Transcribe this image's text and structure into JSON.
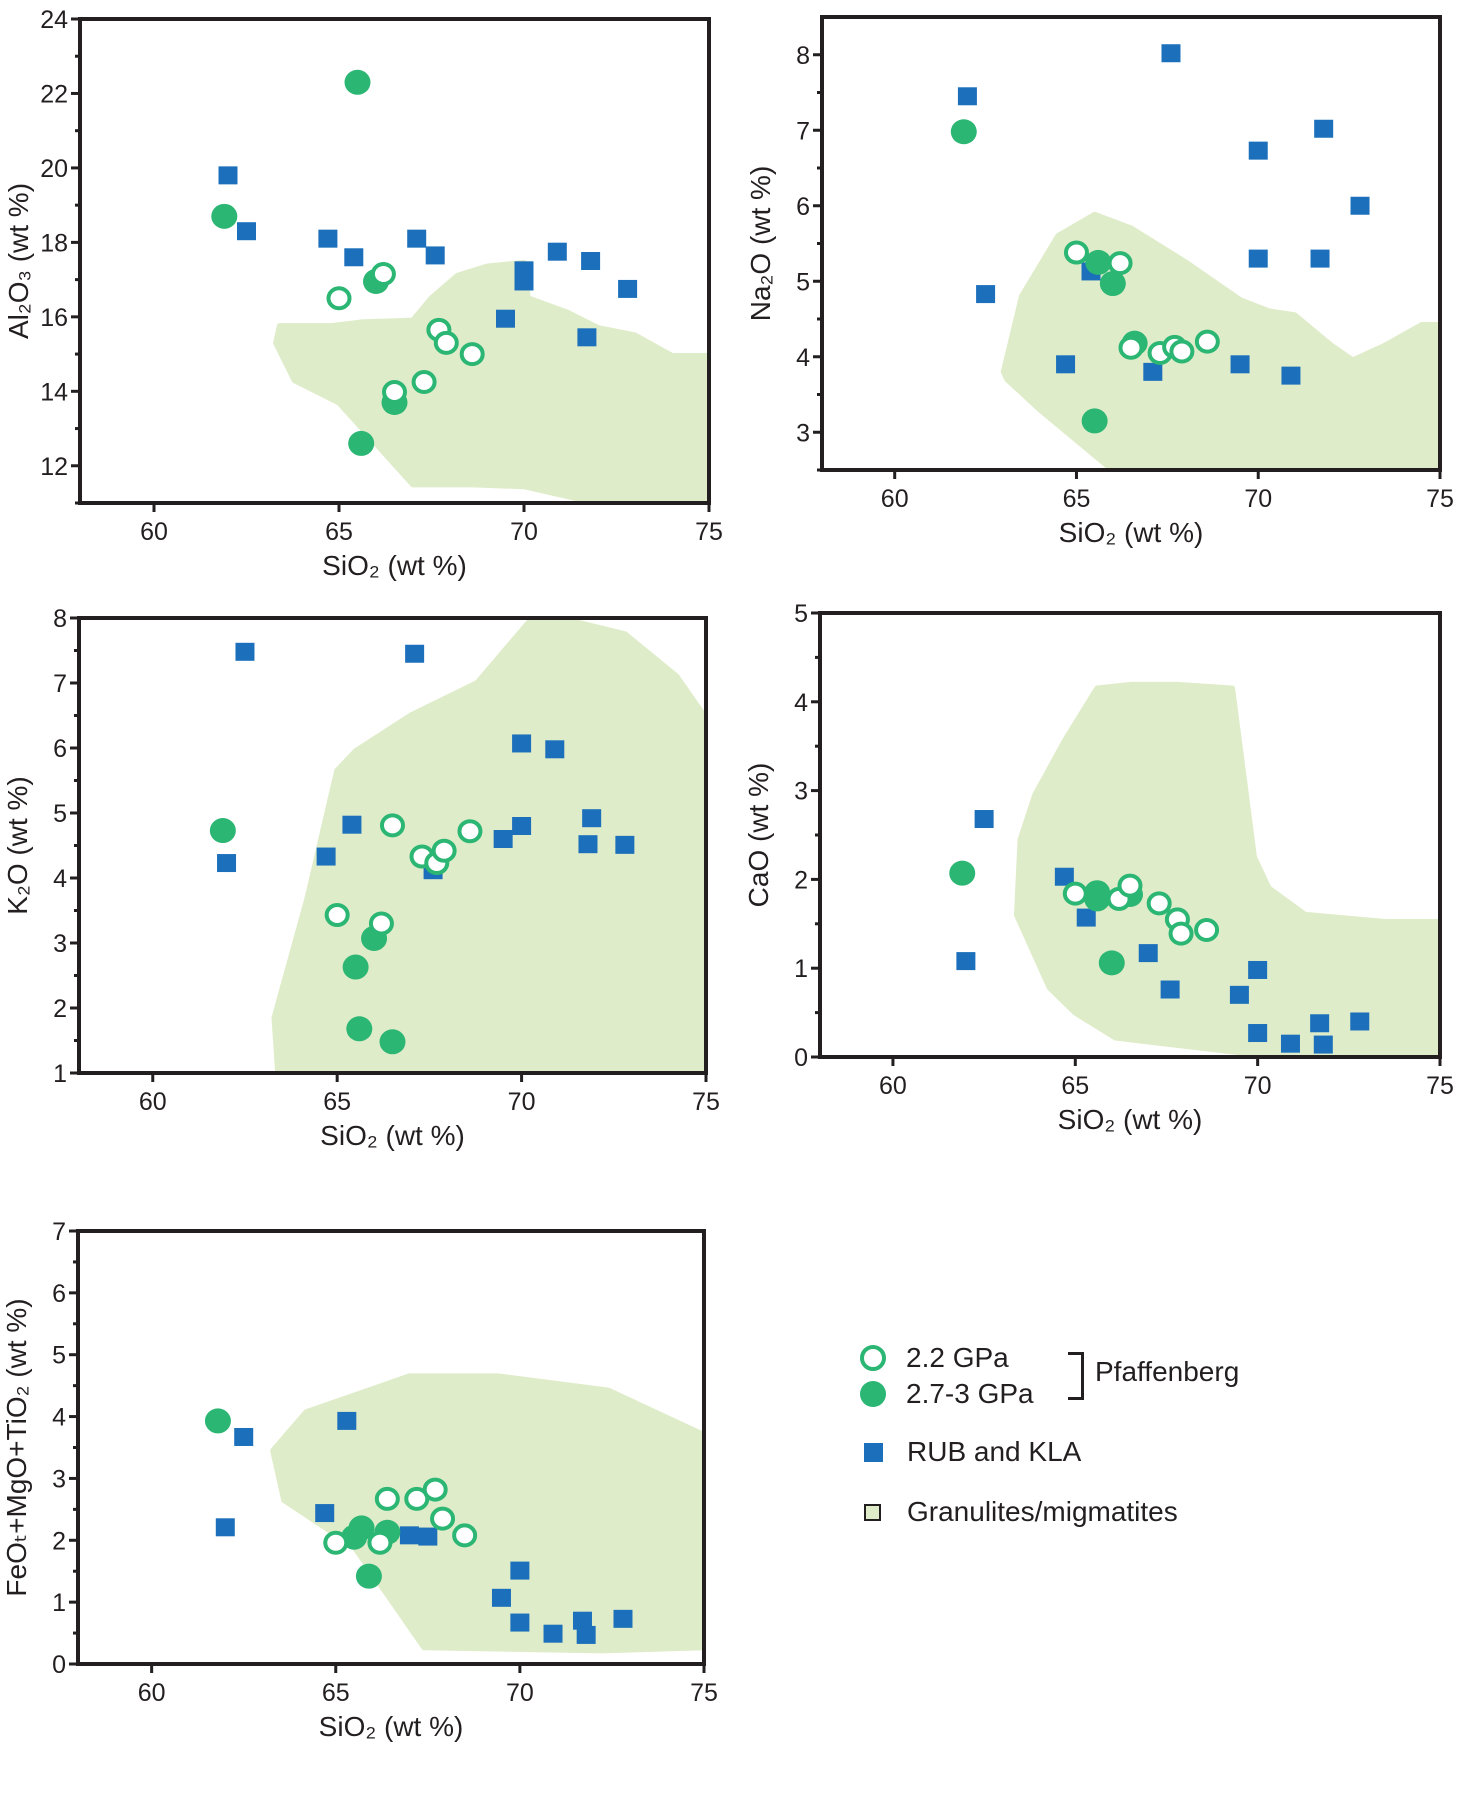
{
  "colors": {
    "pressure_2_2": "#2bb673",
    "pressure_2_7_3": "#2bb673",
    "rub_kla": "#1c70bb",
    "field": "#dfecc9",
    "axis": "#231f20"
  },
  "legend": {
    "items": [
      {
        "symbol": "open-circle",
        "label": "2.2 GPa"
      },
      {
        "symbol": "filled-circle",
        "label": "2.7-3 GPa"
      },
      {
        "symbol": "square",
        "label": "RUB and KLA"
      },
      {
        "symbol": "field",
        "label": "Granulites/migmatites"
      }
    ],
    "group_label": "Pfaffenberg"
  },
  "chart_data": [
    {
      "type": "scatter",
      "id": "al2o3",
      "xlabel": "SiO₂ (wt %)",
      "ylabel": "Al₂O₃ (wt %)",
      "xlim": [
        58,
        75
      ],
      "ylim": [
        11,
        24
      ],
      "xticks": [
        60,
        65,
        70,
        75
      ],
      "yticks": [
        12,
        14,
        16,
        18,
        20,
        22,
        24
      ],
      "series": [
        {
          "name": "2.2 GPa",
          "marker": "open-circle",
          "x": [
            65.0,
            66.2,
            66.5,
            67.3,
            67.7,
            67.9,
            68.6
          ],
          "y": [
            16.5,
            17.15,
            13.98,
            14.25,
            15.65,
            15.3,
            15.0
          ]
        },
        {
          "name": "2.7-3 GPa",
          "marker": "filled-circle",
          "x": [
            61.9,
            65.5,
            66.0,
            66.5,
            65.6
          ],
          "y": [
            18.7,
            22.3,
            16.95,
            13.7,
            12.6
          ]
        },
        {
          "name": "RUB and KLA",
          "marker": "square",
          "x": [
            62.0,
            62.5,
            64.7,
            65.4,
            67.1,
            67.6,
            69.5,
            70.0,
            70.0,
            70.9,
            71.8,
            71.7,
            72.8
          ],
          "y": [
            19.8,
            18.3,
            18.1,
            17.6,
            18.1,
            17.65,
            15.95,
            17.25,
            16.95,
            17.75,
            17.5,
            15.45,
            16.75
          ]
        },
        {
          "name": "Granulites/migmatites",
          "marker": "field",
          "x": [
            63.4,
            64.8,
            65.6,
            67.0,
            67.5,
            68.2,
            69.0,
            70.0,
            70.1,
            71.2,
            72.0,
            73.0,
            74.0,
            75.0,
            75.0,
            72.0,
            70.0,
            68.6,
            67.0,
            65.0,
            63.8,
            63.3
          ],
          "y": [
            15.75,
            15.75,
            15.85,
            15.9,
            16.5,
            17.1,
            17.35,
            17.45,
            16.5,
            16.1,
            15.7,
            15.5,
            14.95,
            14.95,
            11.0,
            11.0,
            11.45,
            11.5,
            11.5,
            13.7,
            14.3,
            15.3
          ]
        }
      ]
    },
    {
      "type": "scatter",
      "id": "na2o",
      "xlabel": "SiO₂ (wt %)",
      "ylabel": "Na₂O (wt %)",
      "xlim": [
        58,
        75
      ],
      "ylim": [
        2.5,
        8.5
      ],
      "xticks": [
        60,
        65,
        70,
        75
      ],
      "yticks": [
        3,
        4,
        5,
        6,
        7,
        8
      ],
      "series": [
        {
          "name": "2.2 GPa",
          "marker": "open-circle",
          "x": [
            65.0,
            66.2,
            66.5,
            67.3,
            67.7,
            67.9,
            68.6
          ],
          "y": [
            5.38,
            5.24,
            4.12,
            4.05,
            4.13,
            4.07,
            4.2
          ]
        },
        {
          "name": "2.7-3 GPa",
          "marker": "filled-circle",
          "x": [
            61.9,
            65.6,
            66.0,
            66.6,
            65.5
          ],
          "y": [
            6.98,
            5.25,
            4.97,
            4.18,
            3.15
          ]
        },
        {
          "name": "RUB and KLA",
          "marker": "square",
          "x": [
            62.0,
            62.5,
            64.7,
            65.4,
            67.1,
            67.6,
            69.5,
            70.0,
            70.0,
            70.9,
            71.8,
            71.7,
            72.8
          ],
          "y": [
            7.45,
            4.83,
            3.9,
            5.13,
            3.8,
            8.02,
            3.9,
            6.73,
            5.3,
            3.75,
            7.02,
            5.3,
            6.0
          ]
        },
        {
          "name": "Granulites/migmatites",
          "marker": "field",
          "x": [
            63.0,
            63.5,
            64.5,
            65.5,
            66.5,
            68.0,
            69.5,
            70.3,
            71.0,
            72.0,
            72.6,
            73.5,
            74.5,
            75.0,
            75.0,
            66.0,
            64.0,
            63.1
          ],
          "y": [
            3.8,
            4.8,
            5.6,
            5.88,
            5.7,
            5.25,
            4.75,
            4.6,
            4.55,
            4.15,
            3.95,
            4.15,
            4.42,
            4.42,
            2.5,
            2.5,
            3.3,
            3.7
          ]
        }
      ]
    },
    {
      "type": "scatter",
      "id": "k2o",
      "xlabel": "SiO₂ (wt %)",
      "ylabel": "K₂O (wt %)",
      "xlim": [
        58,
        75
      ],
      "ylim": [
        1,
        8
      ],
      "xticks": [
        60,
        65,
        70,
        75
      ],
      "yticks": [
        1,
        2,
        3,
        4,
        5,
        6,
        7,
        8
      ],
      "series": [
        {
          "name": "2.2 GPa",
          "marker": "open-circle",
          "x": [
            65.0,
            66.2,
            66.5,
            67.3,
            67.7,
            67.9,
            68.6
          ],
          "y": [
            3.43,
            3.3,
            4.81,
            4.33,
            4.23,
            4.42,
            4.72
          ]
        },
        {
          "name": "2.7-3 GPa",
          "marker": "filled-circle",
          "x": [
            61.9,
            66.0,
            65.5,
            65.6,
            66.5
          ],
          "y": [
            4.73,
            3.07,
            2.63,
            1.68,
            1.48
          ]
        },
        {
          "name": "RUB and KLA",
          "marker": "square",
          "x": [
            62.0,
            62.5,
            64.7,
            65.4,
            67.1,
            67.6,
            69.5,
            70.0,
            70.0,
            70.9,
            71.8,
            71.9,
            72.8
          ],
          "y": [
            4.23,
            7.48,
            4.33,
            4.82,
            7.45,
            4.12,
            4.6,
            6.07,
            4.8,
            5.98,
            4.52,
            4.92,
            4.51
          ]
        },
        {
          "name": "Granulites/migmatites",
          "marker": "field",
          "x": [
            63.3,
            64.2,
            65.0,
            65.5,
            67.0,
            68.8,
            70.3,
            71.0,
            72.8,
            74.2,
            75.0,
            75.0,
            63.4
          ],
          "y": [
            1.85,
            3.7,
            5.65,
            5.95,
            6.5,
            7.0,
            8.0,
            8.0,
            7.75,
            7.1,
            6.45,
            1.0,
            1.0
          ]
        }
      ]
    },
    {
      "type": "scatter",
      "id": "cao",
      "xlabel": "SiO₂ (wt %)",
      "ylabel": "CaO (wt %)",
      "xlim": [
        58,
        75
      ],
      "ylim": [
        0,
        5
      ],
      "xticks": [
        60,
        65,
        70,
        75
      ],
      "yticks": [
        0,
        1,
        2,
        3,
        4,
        5
      ],
      "series": [
        {
          "name": "2.2 GPa",
          "marker": "open-circle",
          "x": [
            65.0,
            66.2,
            66.5,
            67.3,
            67.8,
            67.9,
            68.6
          ],
          "y": [
            1.84,
            1.78,
            1.93,
            1.73,
            1.55,
            1.39,
            1.43
          ]
        },
        {
          "name": "2.7-3 GPa",
          "marker": "filled-circle",
          "x": [
            61.9,
            65.6,
            65.6,
            66.5,
            66.0
          ],
          "y": [
            2.07,
            1.85,
            1.78,
            1.83,
            1.06
          ]
        },
        {
          "name": "RUB and KLA",
          "marker": "square",
          "x": [
            62.0,
            62.5,
            64.7,
            65.3,
            67.0,
            67.6,
            69.5,
            70.0,
            70.0,
            70.9,
            71.7,
            71.8,
            72.8
          ],
          "y": [
            1.08,
            2.68,
            2.03,
            1.57,
            1.17,
            0.76,
            0.7,
            0.98,
            0.27,
            0.15,
            0.38,
            0.14,
            0.4
          ]
        },
        {
          "name": "Granulites/migmatites",
          "marker": "field",
          "x": [
            63.4,
            63.5,
            63.9,
            64.7,
            65.6,
            66.5,
            67.8,
            69.3,
            69.9,
            70.3,
            71.3,
            73.5,
            75.0,
            75.0,
            70.0,
            67.5,
            66.1,
            65.0,
            64.3
          ],
          "y": [
            1.6,
            2.45,
            2.95,
            3.55,
            4.15,
            4.19,
            4.19,
            4.15,
            2.25,
            1.9,
            1.6,
            1.52,
            1.52,
            0.0,
            0.03,
            0.15,
            0.22,
            0.5,
            0.78
          ]
        }
      ]
    },
    {
      "type": "scatter",
      "id": "feomgoti",
      "xlabel": "SiO₂ (wt %)",
      "ylabel": "FeOₜ+MgO+TiO₂ (wt %)",
      "xlim": [
        58,
        75
      ],
      "ylim": [
        0,
        7
      ],
      "xticks": [
        60,
        65,
        70,
        75
      ],
      "yticks": [
        0,
        1,
        2,
        3,
        4,
        5,
        6,
        7
      ],
      "series": [
        {
          "name": "2.2 GPa",
          "marker": "open-circle",
          "x": [
            65.0,
            66.2,
            66.4,
            67.2,
            67.7,
            67.9,
            68.5
          ],
          "y": [
            1.96,
            1.96,
            2.67,
            2.67,
            2.82,
            2.35,
            2.08
          ]
        },
        {
          "name": "2.7-3 GPa",
          "marker": "filled-circle",
          "x": [
            61.8,
            65.5,
            65.7,
            66.4,
            65.9
          ],
          "y": [
            3.93,
            2.05,
            2.2,
            2.13,
            1.42
          ]
        },
        {
          "name": "RUB and KLA",
          "marker": "square",
          "x": [
            62.0,
            62.5,
            64.7,
            65.3,
            67.0,
            67.5,
            69.5,
            70.0,
            70.0,
            70.9,
            71.7,
            71.8,
            72.8
          ],
          "y": [
            2.21,
            3.67,
            2.44,
            3.93,
            2.08,
            2.06,
            1.07,
            1.51,
            0.67,
            0.49,
            0.7,
            0.47,
            0.73
          ]
        },
        {
          "name": "Granulites/migmatites",
          "marker": "field",
          "x": [
            63.3,
            64.2,
            67.0,
            69.4,
            72.4,
            75.0,
            75.0,
            72.2,
            67.4,
            65.5,
            63.6
          ],
          "y": [
            3.45,
            4.07,
            4.65,
            4.65,
            4.42,
            3.7,
            0.27,
            0.22,
            0.27,
            1.9,
            2.65
          ]
        }
      ]
    }
  ]
}
